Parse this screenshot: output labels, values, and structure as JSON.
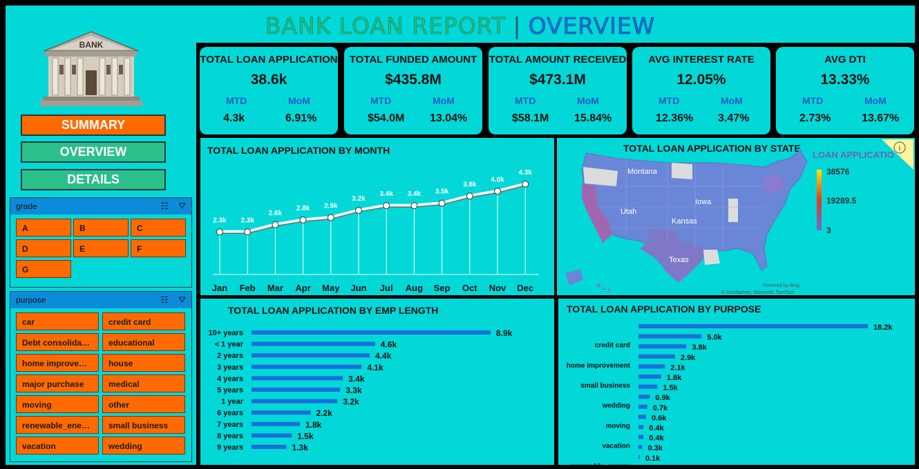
{
  "header": {
    "title_part1": "BANK LOAN REPORT",
    "separator": "|",
    "title_part2": "OVERVIEW"
  },
  "logo": {
    "label": "BANK"
  },
  "nav": {
    "summary": "SUMMARY",
    "overview": "OVERVIEW",
    "details": "DETAILS"
  },
  "grade_slicer": {
    "title": "grade",
    "items": [
      "A",
      "B",
      "C",
      "D",
      "E",
      "F",
      "G"
    ]
  },
  "purpose_slicer": {
    "title": "purpose",
    "items": [
      "car",
      "credit card",
      "Debt consolidati...",
      "educational",
      "home improveme...",
      "house",
      "major purchase",
      "medical",
      "moving",
      "other",
      "renewable_energy",
      "small business",
      "vacation",
      "wedding"
    ]
  },
  "kpis": [
    {
      "title": "TOTAL  LOAN APPLICATION",
      "value": "38.6k",
      "mtd_label": "MTD",
      "mom_label": "MoM",
      "mtd": "4.3k",
      "mom": "6.91%"
    },
    {
      "title": "TOTAL  FUNDED AMOUNT",
      "value": "$435.8M",
      "mtd_label": "MTD",
      "mom_label": "MoM",
      "mtd": "$54.0M",
      "mom": "13.04%"
    },
    {
      "title": "TOTAL  AMOUNT RECEIVED",
      "value": "$473.1M",
      "mtd_label": "MTD",
      "mom_label": "MoM",
      "mtd": "$58.1M",
      "mom": "15.84%"
    },
    {
      "title": "AVG INTEREST RATE",
      "value": "12.05%",
      "mtd_label": "MTD",
      "mom_label": "MoM",
      "mtd": "12.36%",
      "mom": "3.47%"
    },
    {
      "title": "AVG DTI",
      "value": "13.33%",
      "mtd_label": "MTD",
      "mom_label": "MoM",
      "mtd": "2.73%",
      "mom": "13.67%"
    }
  ],
  "map": {
    "title": "TOTAL LOAN APPLICATION BY STATE",
    "legend_title": "LOAN APPLICATIO",
    "legend_max": "38576",
    "legend_mid": "19289.5",
    "legend_min": "3",
    "state_labels": [
      "Montana",
      "Utah",
      "Iowa",
      "Kansas",
      "Texas"
    ],
    "credit_powered": "Powered by Bing",
    "credit": "© GeoNames, Microsoft, TomTom",
    "info_icon": "info-icon"
  },
  "chart_data": [
    {
      "type": "line",
      "title": "TOTAL LOAN APPLICATION BY MONTH",
      "categories": [
        "Jan",
        "Feb",
        "Mar",
        "Apr",
        "May",
        "Jun",
        "Jul",
        "Aug",
        "Sep",
        "Oct",
        "Nov",
        "Dec"
      ],
      "values": [
        2.3,
        2.3,
        2.6,
        2.8,
        2.9,
        3.2,
        3.4,
        3.4,
        3.5,
        3.8,
        4.0,
        4.3
      ],
      "labels": [
        "2.3k",
        "2.3k",
        "2.6k",
        "2.8k",
        "2.9k",
        "3.2k",
        "3.4k",
        "3.4k",
        "3.5k",
        "3.8k",
        "4.0k",
        "4.3k"
      ],
      "unit": "k",
      "ylim": [
        0,
        4.5
      ]
    },
    {
      "type": "bar",
      "title": "TOTAL LOAN APPLICATION BY EMP LENGTH",
      "orientation": "horizontal",
      "categories": [
        "10+ years",
        "< 1 year",
        "2 years",
        "3 years",
        "4 years",
        "5 years",
        "1 year",
        "6 years",
        "7 years",
        "8 years",
        "9 years"
      ],
      "values": [
        8.9,
        4.6,
        4.4,
        4.1,
        3.4,
        3.3,
        3.2,
        2.2,
        1.8,
        1.5,
        1.3
      ],
      "labels": [
        "8.9k",
        "4.6k",
        "4.4k",
        "4.1k",
        "3.4k",
        "3.3k",
        "3.2k",
        "2.2k",
        "1.8k",
        "1.5k",
        "1.3k"
      ],
      "xlim": [
        0,
        9.5
      ]
    },
    {
      "type": "bar",
      "title": "TOTAL LOAN APPLICATION BY PURPOSE",
      "orientation": "horizontal",
      "categories": [
        "",
        "credit card",
        "",
        "home improvement",
        "",
        "small business",
        "",
        "wedding",
        "",
        "moving",
        "",
        "vacation",
        "",
        "renewable_energy"
      ],
      "values": [
        18.2,
        5.0,
        3.8,
        2.9,
        2.1,
        1.8,
        1.5,
        0.9,
        0.7,
        0.6,
        0.4,
        0.4,
        0.3,
        0.1
      ],
      "labels": [
        "18.2k",
        "5.0k",
        "3.8k",
        "2.9k",
        "2.1k",
        "1.8k",
        "1.5k",
        "0.9k",
        "0.7k",
        "0.6k",
        "0.4k",
        "0.4k",
        "0.3k",
        "0.1k"
      ],
      "xlim": [
        0,
        19
      ]
    }
  ],
  "colors": {
    "panel": "#02d8d8",
    "accent_orange": "#ff6a00",
    "accent_green": "#2bc08a",
    "bar_blue": "#1a6fd8",
    "slicer_head": "#0c8cd8"
  }
}
